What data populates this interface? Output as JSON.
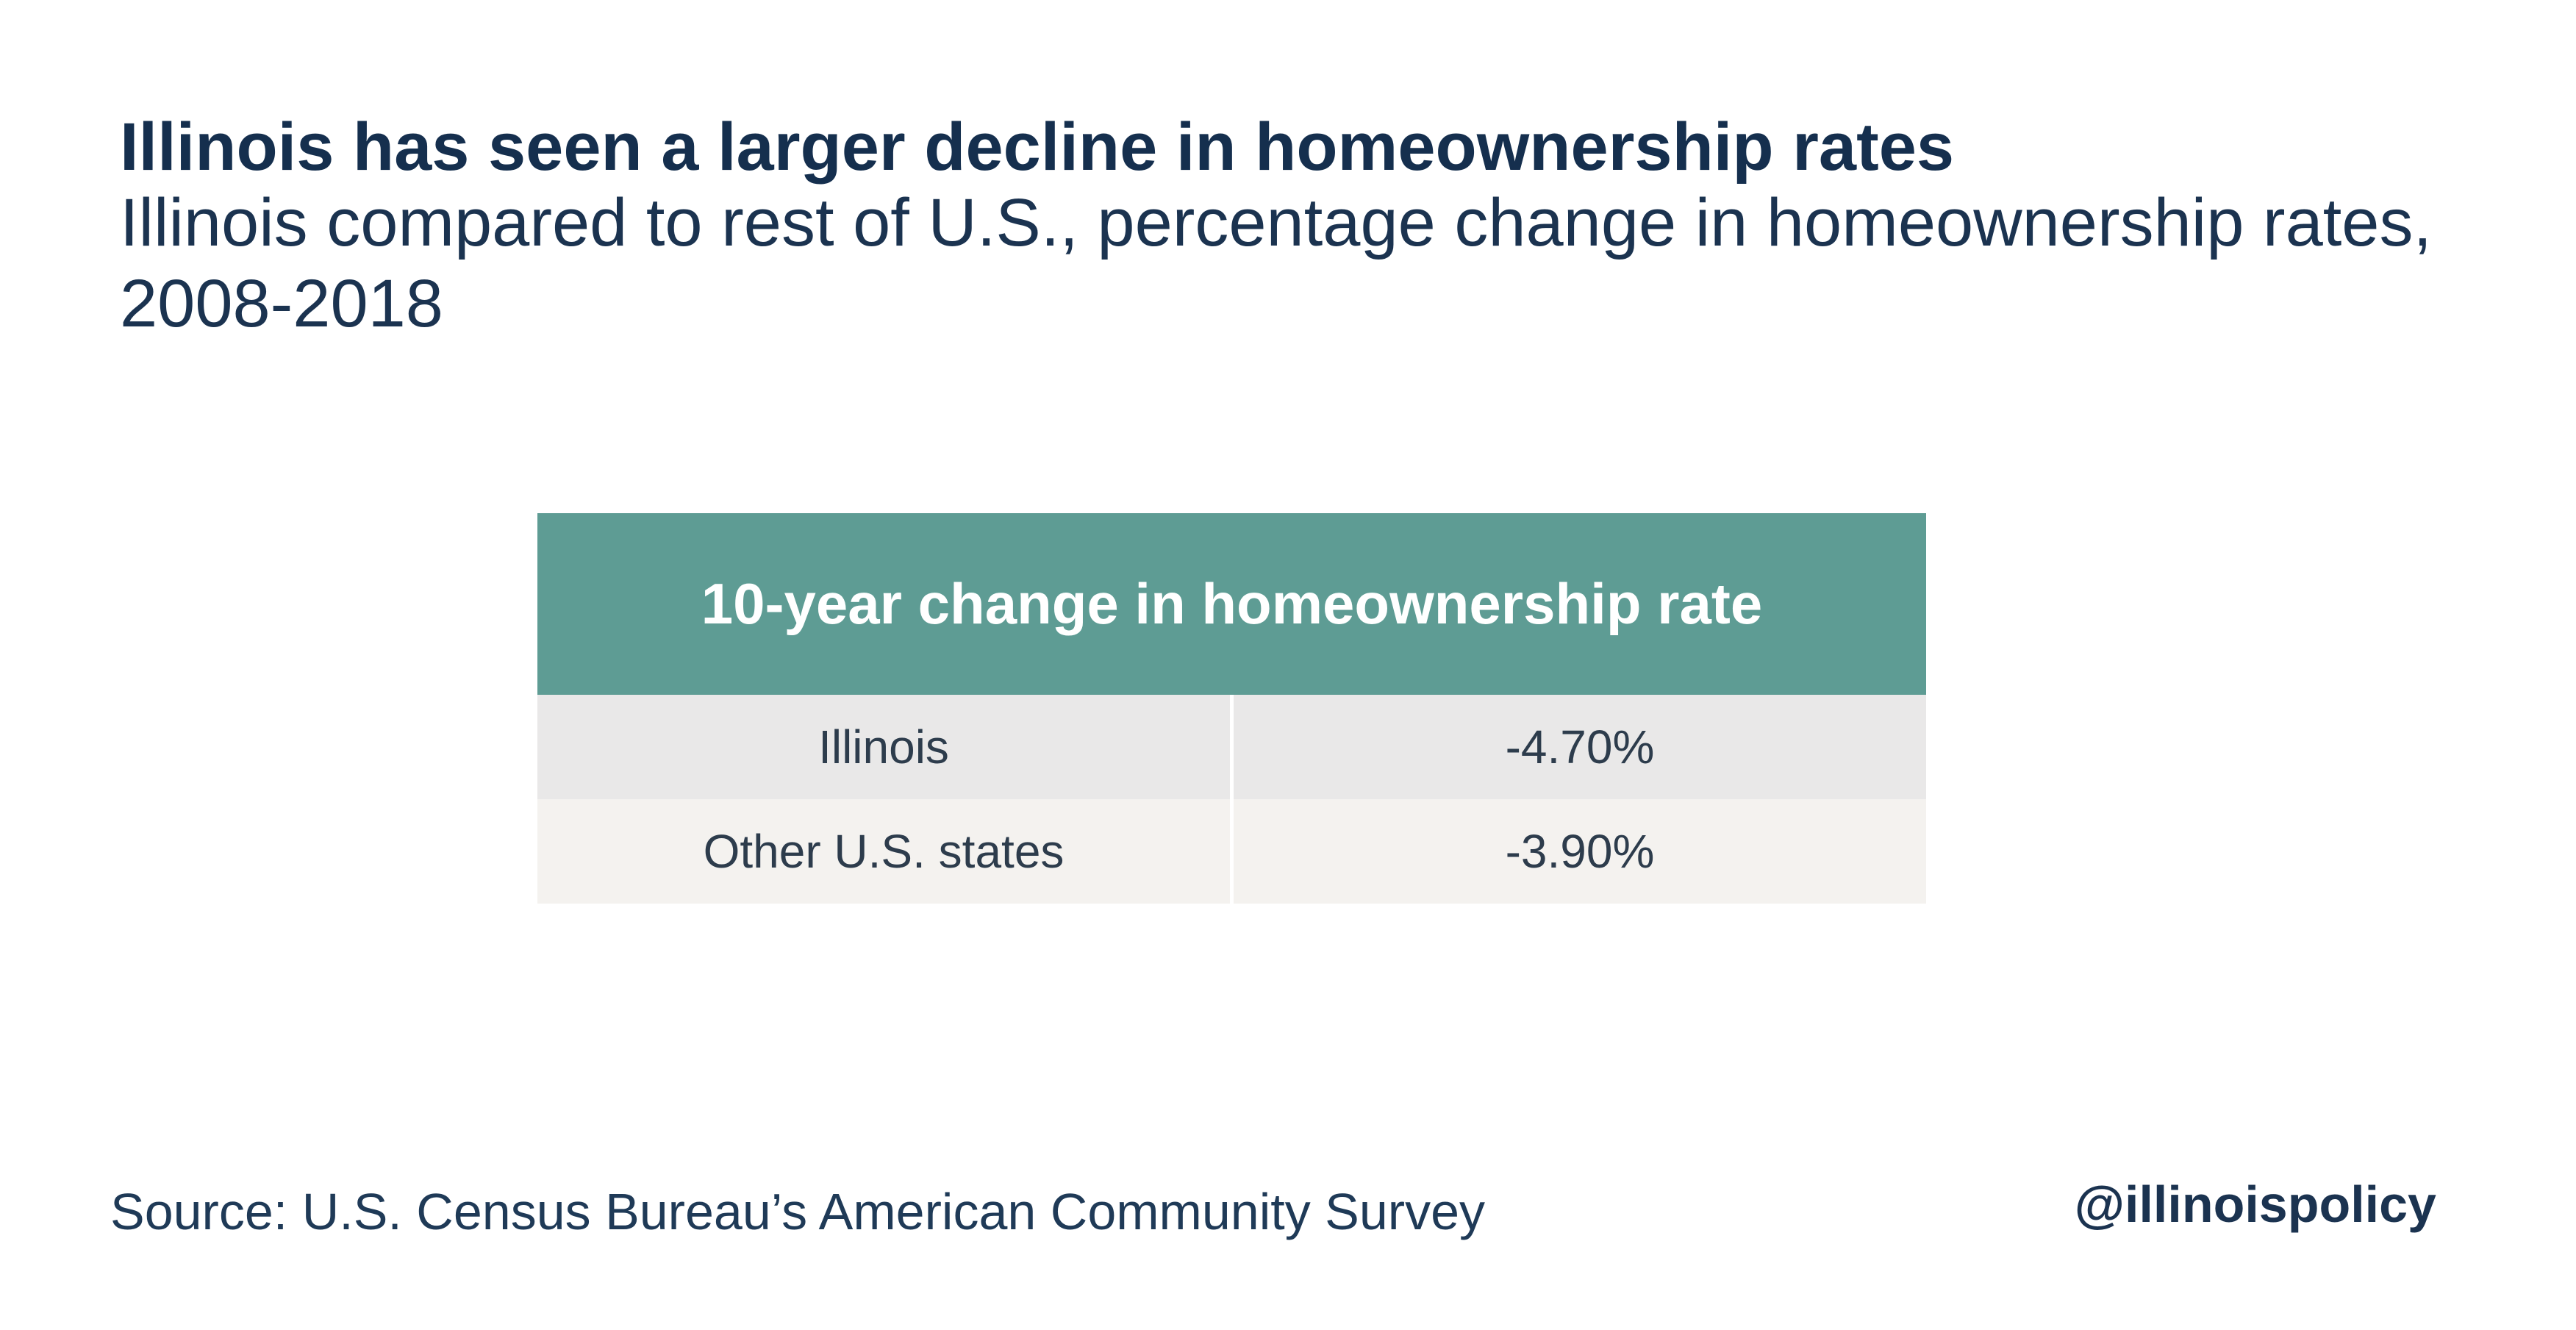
{
  "chart_data": {
    "type": "table",
    "title": "Illinois has seen a larger decline in homeownership rates",
    "subtitle": "Illinois compared to rest of U.S., percentage change in homeownership rates, 2008-2018",
    "header": "10-year change in homeownership rate",
    "rows": [
      {
        "label": "Illinois",
        "value": "-4.70%"
      },
      {
        "label": "Other U.S. states",
        "value": "-3.90%"
      }
    ],
    "source": "Source: U.S. Census Bureau’s American Community Survey",
    "credit": "@illinoispolicy"
  },
  "colors": {
    "header_bg": "#5e9c94",
    "row_a_bg": "#e9e8e8",
    "row_b_bg": "#f4f2ef",
    "title_text": "#152f4e"
  }
}
